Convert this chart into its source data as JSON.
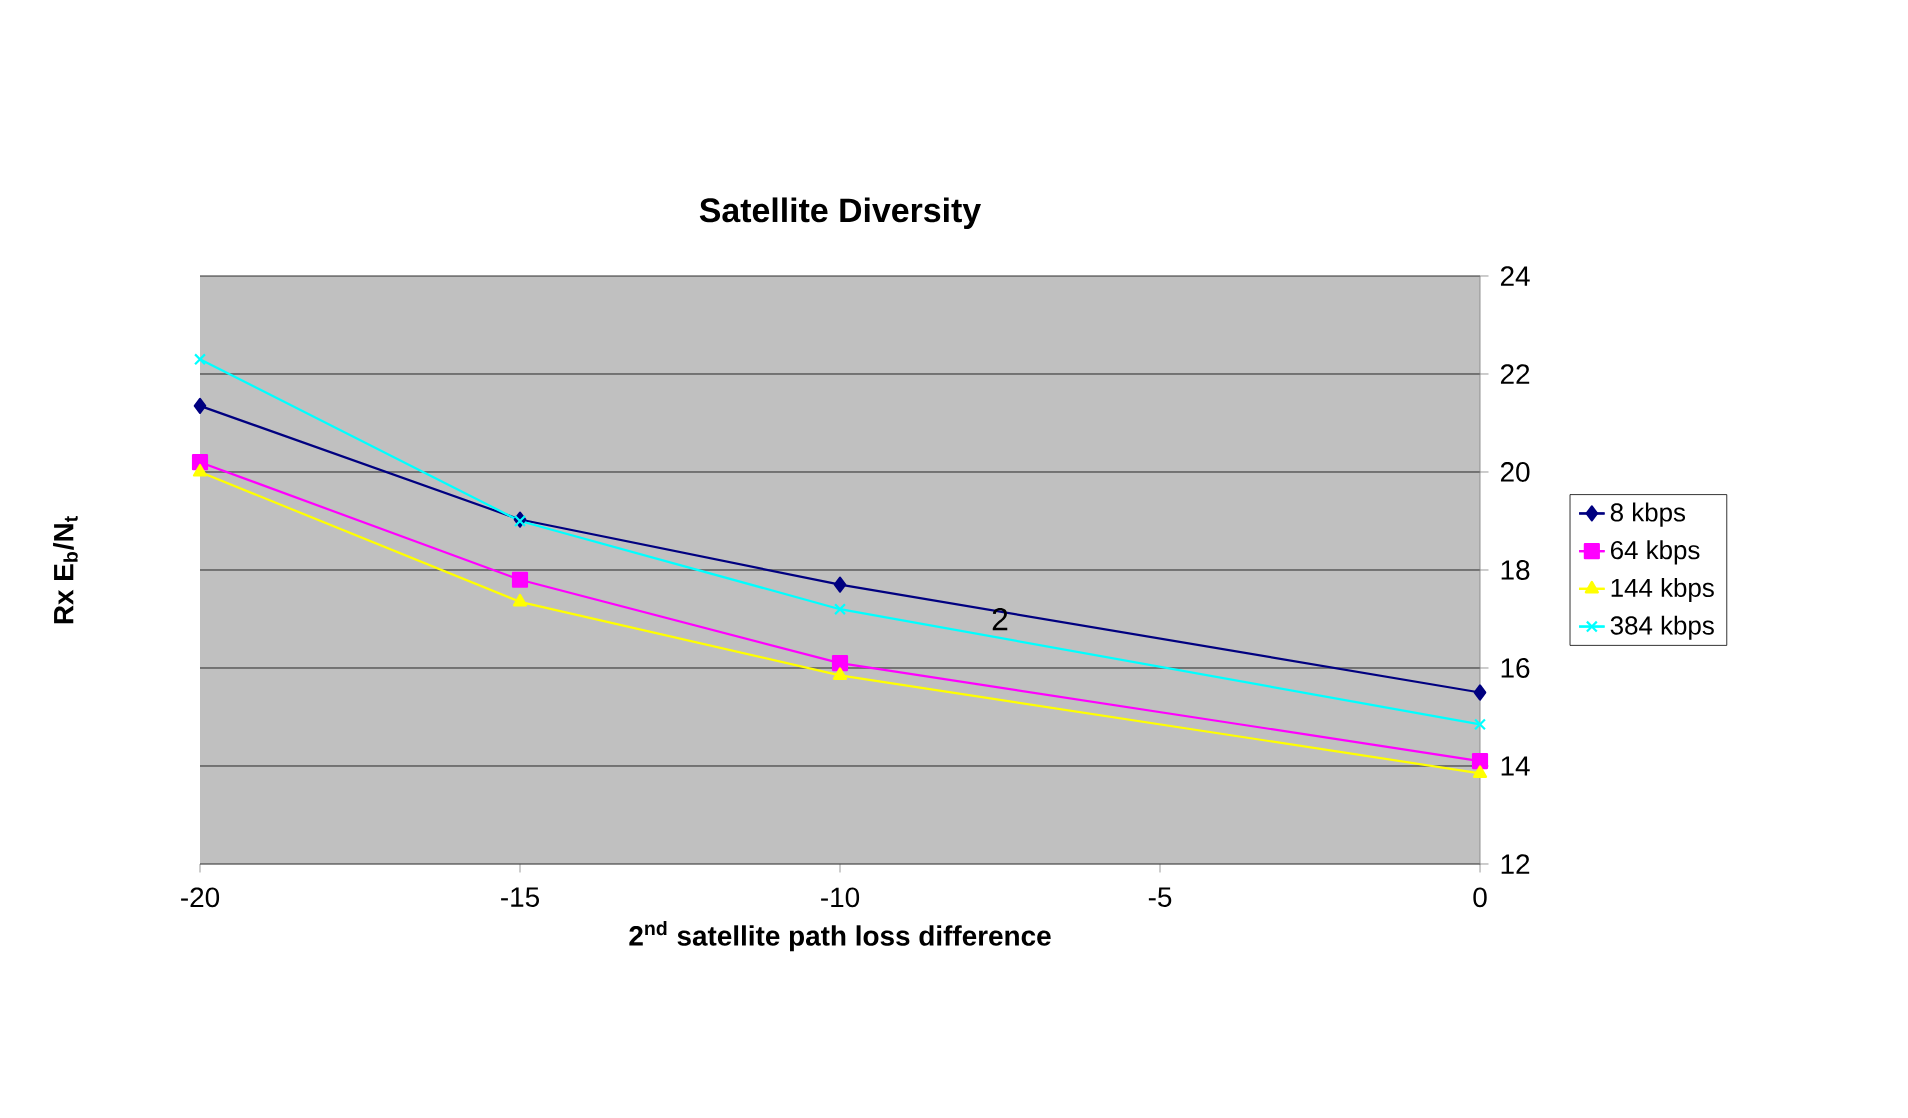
{
  "chart_data": {
    "type": "line",
    "title": "Satellite Diversity",
    "xlabel": "2$^{nd}$ satellite path loss difference",
    "ylabel": "Rx E$_{b}$/N$_{t}$",
    "x": [
      -20,
      -15,
      -10,
      0
    ],
    "series": [
      {
        "name": "8 kbps",
        "color": "#000080",
        "marker": "diamond",
        "values": [
          21.35,
          19.03,
          17.7,
          15.5
        ]
      },
      {
        "name": "64 kbps",
        "color": "#ff00ff",
        "marker": "square",
        "values": [
          20.2,
          17.8,
          16.1,
          14.1
        ]
      },
      {
        "name": "144 kbps",
        "color": "#ffff00",
        "marker": "triangle",
        "values": [
          20.0,
          17.35,
          15.85,
          13.85
        ]
      },
      {
        "name": "384 kbps",
        "color": "#00ffff",
        "marker": "cross",
        "values": [
          22.3,
          19.0,
          17.2,
          14.85
        ]
      }
    ],
    "annotations": [
      {
        "text": "2",
        "x": -7.5,
        "y": 17.0
      }
    ],
    "xlim": [
      -20,
      0
    ],
    "xticks": [
      -20,
      -15,
      -10,
      -5,
      0
    ],
    "ylim": [
      12,
      24
    ],
    "yticks": [
      12,
      14,
      16,
      18,
      20,
      22,
      24
    ],
    "grid": "y",
    "legend": "right",
    "line_style": "solid"
  }
}
